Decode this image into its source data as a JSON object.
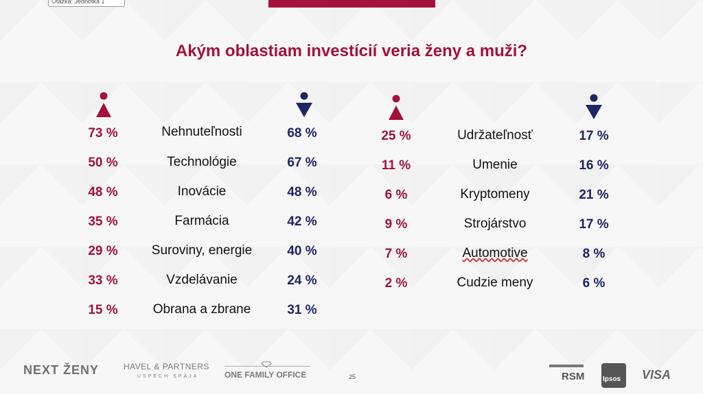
{
  "badge": "Otázka: Jednotka 1",
  "title": "Akým oblastiam investícií veria ženy a muži?",
  "colors": {
    "women": "#a3123a",
    "men": "#1f2463"
  },
  "icons": {
    "women": "woman-icon",
    "men": "man-icon"
  },
  "left_table": [
    {
      "women": "73 %",
      "label": "Nehnuteľnosti",
      "men": "68 %"
    },
    {
      "women": "50 %",
      "label": "Technológie",
      "men": "67 %"
    },
    {
      "women": "48 %",
      "label": "Inovácie",
      "men": "48 %"
    },
    {
      "women": "35 %",
      "label": "Farmácia",
      "men": "42 %"
    },
    {
      "women": "29 %",
      "label": "Suroviny, energie",
      "men": "40 %"
    },
    {
      "women": "33 %",
      "label": "Vzdelávanie",
      "men": "24 %"
    },
    {
      "women": "15 %",
      "label": "Obrana a zbrane",
      "men": "31 %"
    }
  ],
  "right_table": [
    {
      "women": "25 %",
      "label": "Udržateľnosť",
      "men": "17 %"
    },
    {
      "women": "11 %",
      "label": "Umenie",
      "men": "16 %"
    },
    {
      "women": "6 %",
      "label": "Kryptomeny",
      "men": "21 %"
    },
    {
      "women": "9 %",
      "label": "Strojárstvo",
      "men": "17 %"
    },
    {
      "women": "7 %",
      "label": "Automotive",
      "men": "8 %"
    },
    {
      "women": "2 %",
      "label": "Cudzie meny",
      "men": "6 %"
    }
  ],
  "footer": {
    "next_zeny": "NEXT ŽENY",
    "havel": "HAVEL & PARTNERS",
    "havel_sub": "ÚSPECH SPÁJA",
    "one_family_office": "ONE FAMILY OFFICE",
    "page_number": "25",
    "rsm": "RSM",
    "ipsos": "Ipsos",
    "visa": "VISA"
  }
}
